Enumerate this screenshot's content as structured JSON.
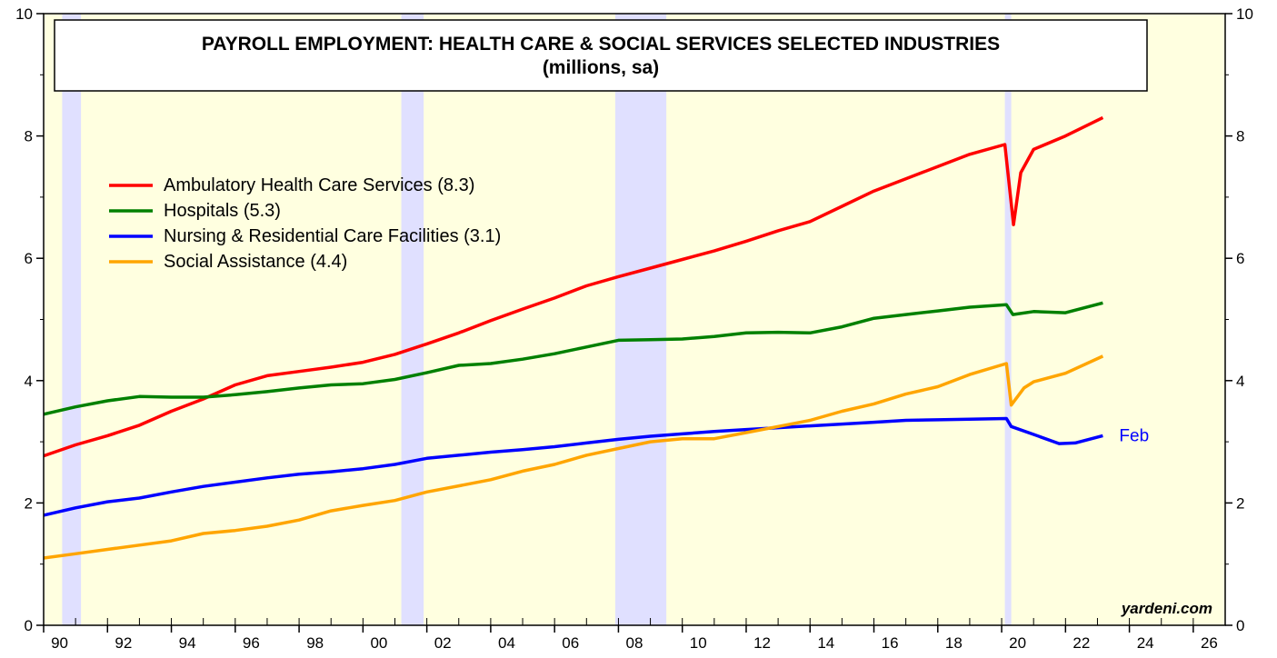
{
  "chart_data": {
    "type": "line",
    "title": "PAYROLL EMPLOYMENT: HEALTH CARE & SOCIAL SERVICES SELECTED INDUSTRIES",
    "subtitle": "(millions, sa)",
    "xlim": [
      1990,
      2027
    ],
    "xticks": [
      {
        "value": 1990,
        "label": "90"
      },
      {
        "value": 1992,
        "label": "92"
      },
      {
        "value": 1994,
        "label": "94"
      },
      {
        "value": 1996,
        "label": "96"
      },
      {
        "value": 1998,
        "label": "98"
      },
      {
        "value": 2000,
        "label": "00"
      },
      {
        "value": 2002,
        "label": "02"
      },
      {
        "value": 2004,
        "label": "04"
      },
      {
        "value": 2006,
        "label": "06"
      },
      {
        "value": 2008,
        "label": "08"
      },
      {
        "value": 2010,
        "label": "10"
      },
      {
        "value": 2012,
        "label": "12"
      },
      {
        "value": 2014,
        "label": "14"
      },
      {
        "value": 2016,
        "label": "16"
      },
      {
        "value": 2018,
        "label": "18"
      },
      {
        "value": 2020,
        "label": "20"
      },
      {
        "value": 2022,
        "label": "22"
      },
      {
        "value": 2024,
        "label": "24"
      },
      {
        "value": 2026,
        "label": "26"
      }
    ],
    "ylim": [
      0,
      10
    ],
    "yticks": [
      0,
      2,
      4,
      6,
      8,
      10
    ],
    "recessions": [
      [
        1990.58,
        1991.17
      ],
      [
        2001.2,
        2001.9
      ],
      [
        2007.9,
        2009.5
      ],
      [
        2020.1,
        2020.3
      ]
    ],
    "series": [
      {
        "name": "Ambulatory Health Care Services (8.3)",
        "color": "#ff0000",
        "x": [
          1990,
          1991,
          1992,
          1993,
          1994,
          1995,
          1996,
          1997,
          1998,
          1999,
          2000,
          2001,
          2002,
          2003,
          2004,
          2005,
          2006,
          2007,
          2008,
          2009,
          2010,
          2011,
          2012,
          2013,
          2014,
          2015,
          2016,
          2017,
          2018,
          2019,
          2020.1,
          2020.37,
          2020.6,
          2021,
          2022,
          2023.17
        ],
        "values": [
          2.77,
          2.95,
          3.1,
          3.27,
          3.5,
          3.7,
          3.93,
          4.08,
          4.15,
          4.22,
          4.3,
          4.43,
          4.6,
          4.78,
          4.98,
          5.17,
          5.35,
          5.55,
          5.7,
          5.84,
          5.98,
          6.12,
          6.28,
          6.45,
          6.6,
          6.85,
          7.1,
          7.3,
          7.5,
          7.7,
          7.86,
          6.55,
          7.4,
          7.78,
          8.0,
          8.3
        ]
      },
      {
        "name": "Hospitals (5.3)",
        "color": "#008000",
        "x": [
          1990,
          1991,
          1992,
          1993,
          1994,
          1995,
          1996,
          1997,
          1998,
          1999,
          2000,
          2001,
          2002,
          2003,
          2004,
          2005,
          2006,
          2007,
          2008,
          2009,
          2010,
          2011,
          2012,
          2013,
          2014,
          2015,
          2016,
          2017,
          2018,
          2019,
          2020.15,
          2020.35,
          2021,
          2022,
          2023.17
        ],
        "values": [
          3.45,
          3.57,
          3.67,
          3.74,
          3.73,
          3.73,
          3.77,
          3.82,
          3.88,
          3.93,
          3.95,
          4.02,
          4.13,
          4.25,
          4.28,
          4.35,
          4.44,
          4.55,
          4.66,
          4.67,
          4.68,
          4.72,
          4.78,
          4.79,
          4.78,
          4.88,
          5.02,
          5.08,
          5.14,
          5.2,
          5.24,
          5.08,
          5.13,
          5.11,
          5.27
        ]
      },
      {
        "name": "Nursing & Residential Care Facilities (3.1)",
        "color": "#0000ff",
        "x": [
          1990,
          1991,
          1992,
          1993,
          1994,
          1995,
          1996,
          1997,
          1998,
          1999,
          2000,
          2001,
          2002,
          2003,
          2004,
          2005,
          2006,
          2007,
          2008,
          2009,
          2010,
          2011,
          2012,
          2013,
          2014,
          2015,
          2016,
          2017,
          2018,
          2019,
          2020.15,
          2020.3,
          2021,
          2021.8,
          2022.3,
          2023.17
        ],
        "values": [
          1.8,
          1.92,
          2.02,
          2.08,
          2.18,
          2.27,
          2.34,
          2.41,
          2.47,
          2.51,
          2.56,
          2.63,
          2.73,
          2.78,
          2.83,
          2.87,
          2.92,
          2.98,
          3.04,
          3.09,
          3.13,
          3.17,
          3.2,
          3.23,
          3.26,
          3.29,
          3.32,
          3.35,
          3.36,
          3.37,
          3.38,
          3.25,
          3.12,
          2.97,
          2.98,
          3.1
        ]
      },
      {
        "name": "Social Assistance (4.4)",
        "color": "#ffa500",
        "x": [
          1990,
          1991,
          1992,
          1993,
          1994,
          1995,
          1996,
          1997,
          1998,
          1999,
          2000,
          2001,
          2002,
          2003,
          2004,
          2005,
          2006,
          2007,
          2008,
          2009,
          2010,
          2011,
          2012,
          2013,
          2014,
          2015,
          2016,
          2017,
          2018,
          2019,
          2020.15,
          2020.3,
          2020.7,
          2021,
          2022,
          2023.17
        ],
        "values": [
          1.1,
          1.17,
          1.24,
          1.31,
          1.38,
          1.5,
          1.55,
          1.62,
          1.72,
          1.87,
          1.96,
          2.04,
          2.18,
          2.28,
          2.38,
          2.52,
          2.63,
          2.78,
          2.89,
          3.0,
          3.05,
          3.05,
          3.15,
          3.25,
          3.35,
          3.5,
          3.62,
          3.78,
          3.9,
          4.1,
          4.28,
          3.6,
          3.88,
          3.98,
          4.12,
          4.4
        ]
      }
    ],
    "annotations": [
      "Feb"
    ],
    "source": "yardeni.com"
  }
}
